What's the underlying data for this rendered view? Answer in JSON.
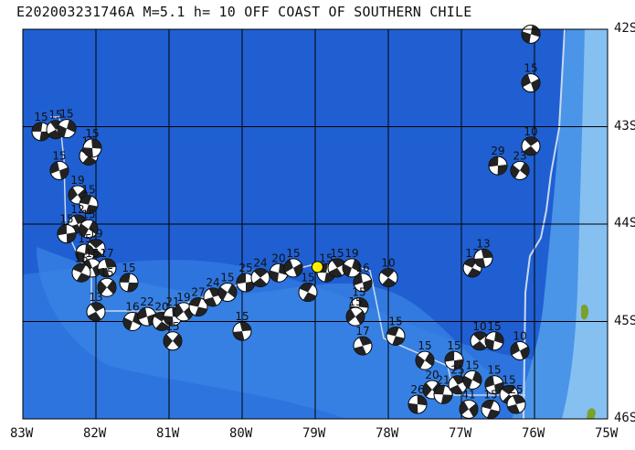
{
  "title": "E202003231746A M=5.1 h= 10 OFF COAST OF SOUTHERN CHILE",
  "map": {
    "lat_labels": [
      "42S",
      "43S",
      "44S",
      "45S",
      "46S"
    ],
    "lon_labels": [
      "83W",
      "82W",
      "81W",
      "80W",
      "79W",
      "78W",
      "77W",
      "76W",
      "75W"
    ],
    "lon_range": [
      -83,
      -75
    ],
    "lat_range": [
      -46,
      -42
    ],
    "colors": {
      "ocean_deep": "#1f5fd1",
      "ocean_mid": "#2f78e0",
      "ocean_shelf": "#4f9ae8",
      "ocean_shallow": "#8cc4f0",
      "land": "#7aa12a",
      "plate_boundary": "#c8d8f0",
      "grid": "#000000",
      "epicenter": "#ffee00"
    },
    "epicenter": {
      "lon": -78.97,
      "lat": -44.44
    },
    "events": [
      {
        "lon": -82.75,
        "lat": -43.05,
        "d": "15"
      },
      {
        "lon": -82.55,
        "lat": -43.03,
        "d": "15"
      },
      {
        "lon": -82.4,
        "lat": -43.02,
        "d": "15"
      },
      {
        "lon": -82.5,
        "lat": -43.45,
        "d": "15"
      },
      {
        "lon": -82.1,
        "lat": -43.3,
        "d": "15"
      },
      {
        "lon": -82.05,
        "lat": -43.22,
        "d": "15"
      },
      {
        "lon": -82.25,
        "lat": -43.7,
        "d": "19"
      },
      {
        "lon": -82.1,
        "lat": -43.8,
        "d": "15"
      },
      {
        "lon": -82.25,
        "lat": -44.0,
        "d": "12"
      },
      {
        "lon": -82.1,
        "lat": -44.05,
        "d": "15"
      },
      {
        "lon": -82.4,
        "lat": -44.1,
        "d": "15"
      },
      {
        "lon": -82.0,
        "lat": -44.25,
        "d": "19"
      },
      {
        "lon": -82.15,
        "lat": -44.3,
        "d": "15"
      },
      {
        "lon": -82.05,
        "lat": -44.45,
        "d": "15"
      },
      {
        "lon": -82.2,
        "lat": -44.5,
        "d": "15"
      },
      {
        "lon": -81.85,
        "lat": -44.45,
        "d": "17"
      },
      {
        "lon": -81.85,
        "lat": -44.65,
        "d": "15"
      },
      {
        "lon": -81.55,
        "lat": -44.6,
        "d": "15"
      },
      {
        "lon": -82.0,
        "lat": -44.9,
        "d": "13"
      },
      {
        "lon": -81.5,
        "lat": -45.0,
        "d": "16"
      },
      {
        "lon": -81.3,
        "lat": -44.95,
        "d": "22"
      },
      {
        "lon": -81.1,
        "lat": -45.0,
        "d": "20"
      },
      {
        "lon": -80.95,
        "lat": -44.95,
        "d": "21"
      },
      {
        "lon": -80.8,
        "lat": -44.9,
        "d": "19"
      },
      {
        "lon": -80.6,
        "lat": -44.85,
        "d": "27"
      },
      {
        "lon": -80.4,
        "lat": -44.75,
        "d": "24"
      },
      {
        "lon": -80.2,
        "lat": -44.7,
        "d": "15"
      },
      {
        "lon": -79.95,
        "lat": -44.6,
        "d": "25"
      },
      {
        "lon": -79.75,
        "lat": -44.55,
        "d": "24"
      },
      {
        "lon": -79.5,
        "lat": -44.5,
        "d": "20"
      },
      {
        "lon": -79.3,
        "lat": -44.45,
        "d": "15"
      },
      {
        "lon": -79.1,
        "lat": -44.7,
        "d": "15"
      },
      {
        "lon": -80.0,
        "lat": -45.1,
        "d": "15"
      },
      {
        "lon": -80.95,
        "lat": -45.2,
        "d": "15"
      },
      {
        "lon": -78.85,
        "lat": -44.5,
        "d": "15"
      },
      {
        "lon": -78.7,
        "lat": -44.45,
        "d": "15"
      },
      {
        "lon": -78.5,
        "lat": -44.45,
        "d": "19"
      },
      {
        "lon": -78.35,
        "lat": -44.6,
        "d": "16"
      },
      {
        "lon": -78.0,
        "lat": -44.55,
        "d": "10"
      },
      {
        "lon": -78.4,
        "lat": -44.85,
        "d": "15"
      },
      {
        "lon": -78.45,
        "lat": -44.95,
        "d": "15"
      },
      {
        "lon": -77.9,
        "lat": -45.15,
        "d": "15"
      },
      {
        "lon": -78.35,
        "lat": -45.25,
        "d": "17"
      },
      {
        "lon": -77.5,
        "lat": -45.4,
        "d": "15"
      },
      {
        "lon": -77.1,
        "lat": -45.4,
        "d": "15"
      },
      {
        "lon": -76.75,
        "lat": -45.2,
        "d": "10"
      },
      {
        "lon": -76.55,
        "lat": -45.2,
        "d": "15"
      },
      {
        "lon": -76.2,
        "lat": -45.3,
        "d": "10"
      },
      {
        "lon": -76.85,
        "lat": -44.45,
        "d": "13"
      },
      {
        "lon": -76.7,
        "lat": -44.35,
        "d": "13"
      },
      {
        "lon": -77.4,
        "lat": -45.7,
        "d": "20"
      },
      {
        "lon": -77.25,
        "lat": -45.75,
        "d": "21"
      },
      {
        "lon": -77.05,
        "lat": -45.65,
        "d": "25"
      },
      {
        "lon": -76.85,
        "lat": -45.6,
        "d": "15"
      },
      {
        "lon": -76.55,
        "lat": -45.65,
        "d": "15"
      },
      {
        "lon": -76.35,
        "lat": -45.75,
        "d": "15"
      },
      {
        "lon": -77.6,
        "lat": -45.85,
        "d": "26"
      },
      {
        "lon": -76.9,
        "lat": -45.9,
        "d": "41"
      },
      {
        "lon": -76.6,
        "lat": -45.9,
        "d": "15"
      },
      {
        "lon": -76.25,
        "lat": -45.85,
        "d": "25"
      },
      {
        "lon": -76.2,
        "lat": -43.45,
        "d": "23"
      },
      {
        "lon": -76.5,
        "lat": -43.4,
        "d": "29"
      },
      {
        "lon": -76.05,
        "lat": -43.2,
        "d": "10"
      },
      {
        "lon": -76.05,
        "lat": -42.05,
        "d": ""
      },
      {
        "lon": -76.05,
        "lat": -42.55,
        "d": "15"
      }
    ]
  }
}
